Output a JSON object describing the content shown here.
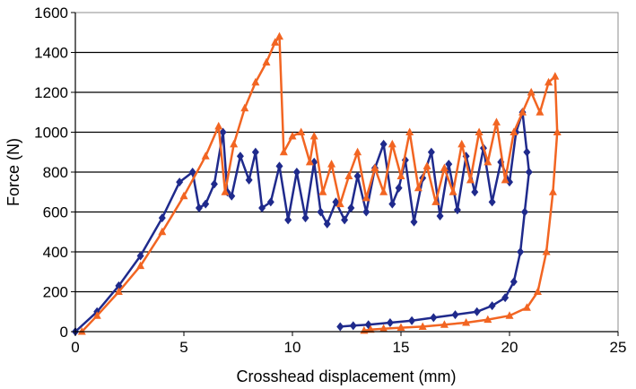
{
  "chart_data": {
    "type": "scatter",
    "title": "",
    "xlabel": "Crosshead displacement (mm)",
    "ylabel": "Force (N)",
    "xlim": [
      0,
      25
    ],
    "ylim": [
      0,
      1600
    ],
    "xticks": [
      0,
      5,
      10,
      15,
      20,
      25
    ],
    "yticks": [
      0,
      200,
      400,
      600,
      800,
      1000,
      1200,
      1400,
      1600
    ],
    "grid": "horizontal",
    "legend": "none",
    "series": [
      {
        "color": "#1f2a8c",
        "marker": "diamond",
        "x": [
          0,
          1,
          2,
          3,
          4,
          4.8,
          5.4,
          5.7,
          6.0,
          6.4,
          6.8,
          7.0,
          7.2,
          7.6,
          8.0,
          8.3,
          8.6,
          9.0,
          9.4,
          9.8,
          10.2,
          10.6,
          11.0,
          11.3,
          11.6,
          12.0,
          12.4,
          12.7,
          13.0,
          13.4,
          13.8,
          14.2,
          14.6,
          14.9,
          15.2,
          15.6,
          16.0,
          16.4,
          16.8,
          17.2,
          17.6,
          18.0,
          18.4,
          18.8,
          19.2,
          19.6,
          20.0,
          20.3,
          20.6,
          20.8,
          20.9,
          20.7,
          20.5,
          20.2,
          19.8,
          19.2,
          18.5,
          17.5,
          16.5,
          15.5,
          14.5,
          13.5,
          12.8,
          12.2
        ],
        "y": [
          0,
          100,
          230,
          380,
          570,
          750,
          800,
          620,
          640,
          740,
          1000,
          700,
          680,
          880,
          760,
          900,
          620,
          650,
          830,
          560,
          800,
          570,
          850,
          600,
          540,
          650,
          560,
          620,
          780,
          600,
          820,
          940,
          640,
          720,
          860,
          550,
          770,
          900,
          580,
          840,
          610,
          880,
          700,
          920,
          650,
          850,
          750,
          1000,
          1100,
          900,
          800,
          600,
          400,
          250,
          170,
          130,
          100,
          85,
          70,
          55,
          45,
          35,
          30,
          25
        ]
      },
      {
        "color": "#f26522",
        "marker": "triangle",
        "x": [
          0.3,
          1,
          2,
          3,
          4,
          5,
          6,
          6.6,
          6.9,
          7.3,
          7.8,
          8.3,
          8.8,
          9.2,
          9.4,
          9.6,
          10.0,
          10.4,
          10.8,
          11.0,
          11.4,
          11.8,
          12.2,
          12.6,
          13.0,
          13.4,
          13.8,
          14.2,
          14.6,
          15.0,
          15.4,
          15.8,
          16.2,
          16.6,
          17.0,
          17.4,
          17.8,
          18.2,
          18.6,
          19.0,
          19.4,
          19.8,
          20.2,
          20.6,
          21.0,
          21.4,
          21.8,
          22.1,
          22.2,
          22.0,
          21.7,
          21.3,
          20.8,
          20.0,
          19.0,
          18.0,
          17.0,
          16.0,
          15.0,
          14.2,
          13.6,
          13.3
        ],
        "y": [
          0,
          80,
          200,
          330,
          500,
          680,
          880,
          1030,
          700,
          940,
          1120,
          1250,
          1350,
          1450,
          1480,
          900,
          980,
          1000,
          850,
          980,
          700,
          840,
          640,
          780,
          900,
          670,
          820,
          700,
          940,
          780,
          1000,
          720,
          830,
          650,
          820,
          700,
          940,
          760,
          1000,
          850,
          1050,
          760,
          1000,
          1100,
          1200,
          1100,
          1250,
          1280,
          1000,
          700,
          400,
          200,
          120,
          80,
          60,
          45,
          35,
          25,
          20,
          15,
          10,
          5
        ]
      }
    ]
  }
}
